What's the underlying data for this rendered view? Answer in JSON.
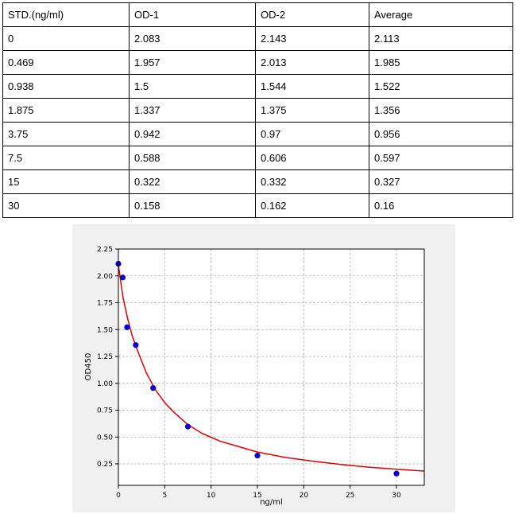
{
  "table": {
    "headers": [
      "STD.(ng/ml)",
      "OD-1",
      "OD-2",
      "Average"
    ],
    "rows": [
      [
        "0",
        "2.083",
        "2.143",
        "2.113"
      ],
      [
        "0.469",
        "1.957",
        "2.013",
        "1.985"
      ],
      [
        "0.938",
        "1.5",
        "1.544",
        "1.522"
      ],
      [
        "1.875",
        "1.337",
        "1.375",
        "1.356"
      ],
      [
        "3.75",
        "0.942",
        "0.97",
        "0.956"
      ],
      [
        "7.5",
        "0.588",
        "0.606",
        "0.597"
      ],
      [
        "15",
        "0.322",
        "0.332",
        "0.327"
      ],
      [
        "30",
        "0.158",
        "0.162",
        "0.16"
      ]
    ]
  },
  "chart_data": {
    "type": "scatter",
    "title": "",
    "xlabel": "ng/ml",
    "ylabel": "OD450",
    "xlim": [
      0,
      33
    ],
    "ylim": [
      0.05,
      2.25
    ],
    "xticks": [
      0,
      5,
      10,
      15,
      20,
      25,
      30
    ],
    "yticks": [
      0.25,
      0.5,
      0.75,
      1.0,
      1.25,
      1.5,
      1.75,
      2.0,
      2.25
    ],
    "ytick_labels": [
      "0.25",
      "0.50",
      "0.75",
      "1.00",
      "1.25",
      "1.50",
      "1.75",
      "2.00",
      "2.25"
    ],
    "grid": true,
    "series": [
      {
        "x": [
          0,
          0.469,
          0.938,
          1.875,
          3.75,
          7.5,
          15,
          30
        ],
        "y": [
          2.113,
          1.985,
          1.522,
          1.356,
          0.956,
          0.597,
          0.327,
          0.16
        ],
        "color": "#0000cc"
      }
    ],
    "fit_curve": {
      "color": "#dd0000",
      "x": [
        0,
        0.5,
        1,
        1.5,
        2,
        3,
        4,
        5,
        6,
        7.5,
        9,
        11,
        13,
        15,
        18,
        21,
        24,
        27,
        30,
        33
      ],
      "y": [
        2.1,
        1.8,
        1.6,
        1.44,
        1.32,
        1.1,
        0.94,
        0.82,
        0.73,
        0.615,
        0.535,
        0.46,
        0.41,
        0.36,
        0.31,
        0.275,
        0.245,
        0.22,
        0.2,
        0.183
      ]
    }
  }
}
